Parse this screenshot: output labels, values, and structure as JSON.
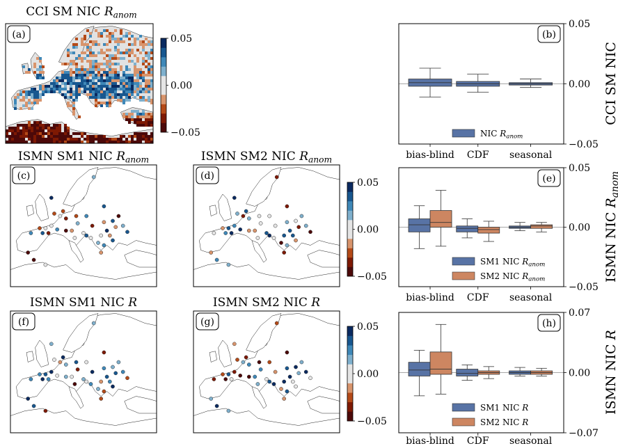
{
  "colors": {
    "nic": "#5873a5",
    "sm1": "#5873a5",
    "sm2": "#cd8661",
    "diverging": [
      "#4c0909",
      "#7e1903",
      "#b44a18",
      "#d8946c",
      "#e5e5e5",
      "#e5e5e5",
      "#7fb0cd",
      "#3f88b8",
      "#18578f",
      "#0a2a60"
    ],
    "land": "#e2e2e2",
    "coast": "#222222"
  },
  "maps": {
    "a": {
      "title": "CCI SM NIC R_anom",
      "tag": "(a)",
      "type": "gridded"
    },
    "c": {
      "title": "ISMN SM1 NIC R_anom",
      "tag": "(c)",
      "type": "stations"
    },
    "d": {
      "title": "ISMN SM2 NIC R_anom",
      "tag": "(d)",
      "type": "stations"
    },
    "f": {
      "title": "ISMN SM1 NIC R",
      "tag": "(f)",
      "type": "stations"
    },
    "g": {
      "title": "ISMN SM2 NIC R",
      "tag": "(g)",
      "type": "stations"
    }
  },
  "colorbars": [
    {
      "ticks": [
        "0.05",
        "0.00",
        "−0.05"
      ]
    },
    {
      "ticks": [
        "0.05",
        "0.00",
        "−0.05"
      ]
    },
    {
      "ticks": [
        "0.05",
        "0.00",
        "−0.05"
      ]
    }
  ],
  "chart_data": [
    {
      "type": "box",
      "tag": "(b)",
      "ylabel": "CCI SM NIC",
      "categories": [
        "bias-blind",
        "CDF",
        "seasonal"
      ],
      "ylim": [
        -0.05,
        0.05
      ],
      "yticks": [
        "0.05",
        "0.00",
        "−0.05"
      ],
      "legend": "bottom-right",
      "series": [
        {
          "name": "NIC R_anom",
          "color": "#5873a5",
          "boxes": [
            {
              "min": -0.011,
              "q1": -0.002,
              "median": 0.001,
              "q3": 0.004,
              "max": 0.013
            },
            {
              "min": -0.007,
              "q1": -0.002,
              "median": 0.0,
              "q3": 0.002,
              "max": 0.008
            },
            {
              "min": -0.003,
              "q1": -0.001,
              "median": 0.0,
              "q3": 0.001,
              "max": 0.004
            }
          ]
        }
      ]
    },
    {
      "type": "box",
      "tag": "(e)",
      "ylabel": "ISMN NIC R_anom",
      "categories": [
        "bias-blind",
        "CDF",
        "seasonal"
      ],
      "ylim": [
        -0.05,
        0.05
      ],
      "yticks": [
        "0.05",
        "0.00",
        "−0.05"
      ],
      "legend": "bottom-right",
      "series": [
        {
          "name": "SM1 NIC R_anom",
          "color": "#5873a5",
          "boxes": [
            {
              "min": -0.018,
              "q1": -0.004,
              "median": 0.002,
              "q3": 0.007,
              "max": 0.018
            },
            {
              "min": -0.009,
              "q1": -0.004,
              "median": -0.001,
              "q3": 0.001,
              "max": 0.007
            },
            {
              "min": -0.003,
              "q1": -0.001,
              "median": 0.0,
              "q3": 0.001,
              "max": 0.004
            }
          ]
        },
        {
          "name": "SM2 NIC R_anom",
          "color": "#cd8661",
          "boxes": [
            {
              "min": -0.016,
              "q1": 0.0,
              "median": 0.004,
              "q3": 0.014,
              "max": 0.031
            },
            {
              "min": -0.012,
              "q1": -0.005,
              "median": -0.002,
              "q3": 0.0,
              "max": 0.005
            },
            {
              "min": -0.004,
              "q1": -0.001,
              "median": 0.001,
              "q3": 0.002,
              "max": 0.004
            }
          ]
        }
      ]
    },
    {
      "type": "box",
      "tag": "(h)",
      "ylabel": "ISMN NIC R",
      "categories": [
        "bias-blind",
        "CDF",
        "seasonal"
      ],
      "ylim": [
        -0.07,
        0.07
      ],
      "yticks": [
        "0.07",
        "0.00",
        "−0.07"
      ],
      "legend": "bottom-right",
      "series": [
        {
          "name": "SM1 NIC R",
          "color": "#5873a5",
          "boxes": [
            {
              "min": -0.027,
              "q1": -0.004,
              "median": 0.003,
              "q3": 0.012,
              "max": 0.026
            },
            {
              "min": -0.009,
              "q1": -0.004,
              "median": -0.001,
              "q3": 0.004,
              "max": 0.009
            },
            {
              "min": -0.004,
              "q1": -0.002,
              "median": 0.0,
              "q3": 0.002,
              "max": 0.006
            }
          ]
        },
        {
          "name": "SM2 NIC R",
          "color": "#cd8661",
          "boxes": [
            {
              "min": -0.025,
              "q1": -0.002,
              "median": 0.004,
              "q3": 0.024,
              "max": 0.056
            },
            {
              "min": -0.007,
              "q1": -0.002,
              "median": 0.0,
              "q3": 0.002,
              "max": 0.007
            },
            {
              "min": -0.004,
              "q1": -0.002,
              "median": 0.0,
              "q3": 0.002,
              "max": 0.005
            }
          ]
        }
      ]
    }
  ]
}
